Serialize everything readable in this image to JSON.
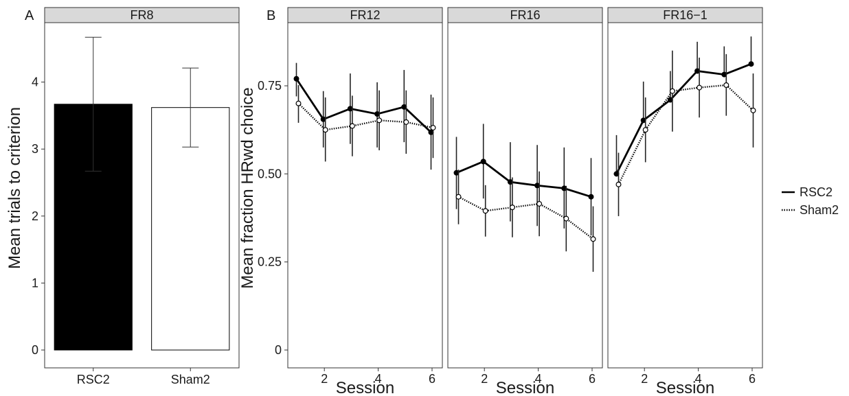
{
  "chart_data": [
    {
      "type": "bar",
      "panel_letter": "A",
      "facet": "FR8",
      "categories": [
        "RSC2",
        "Sham2"
      ],
      "values": [
        3.67,
        3.62
      ],
      "error_low": [
        2.67,
        3.03
      ],
      "error_high": [
        4.67,
        4.21
      ],
      "bar_fill": [
        "#000000",
        "#ffffff"
      ],
      "ylabel": "Mean trials to criterion",
      "ylim": [
        0,
        5
      ],
      "yticks": [
        "0",
        "1",
        "2",
        "3",
        "4"
      ],
      "grid": false
    },
    {
      "type": "line",
      "panel_letter": "B",
      "facets": [
        "FR12",
        "FR16",
        "FR16−1"
      ],
      "xlabel": "Session",
      "ylabel": "Mean fraction HRwd choice",
      "ylim": [
        0,
        0.9
      ],
      "xticks": [
        "2",
        "4",
        "6"
      ],
      "yticks": [
        "0",
        "0.25",
        "0.50",
        "0.75"
      ],
      "x": [
        1,
        2,
        3,
        4,
        5,
        6
      ],
      "grid": false,
      "legend_position": "right",
      "series": [
        {
          "name": "RSC2",
          "line_style": "solid",
          "marker": "filled",
          "values": {
            "FR12": [
              0.77,
              0.655,
              0.685,
              0.67,
              0.69,
              0.618
            ],
            "FR16": [
              0.503,
              0.535,
              0.477,
              0.467,
              0.459,
              0.435
            ],
            "FR16−1": [
              0.5,
              0.652,
              0.71,
              0.792,
              0.782,
              0.812
            ]
          },
          "error_low": {
            "FR12": [
              0.72,
              0.575,
              0.585,
              0.575,
              0.59,
              0.512
            ],
            "FR16": [
              0.4,
              0.43,
              0.365,
              0.352,
              0.345,
              0.325
            ]
          },
          "error_high": {
            "FR12": [
              0.815,
              0.735,
              0.785,
              0.76,
              0.795,
              0.725
            ],
            "FR16": [
              0.605,
              0.642,
              0.59,
              0.582,
              0.575,
              0.545
            ],
            "FR16−1": [
              0.61,
              0.762,
              0.792,
              0.875,
              0.862,
              0.89
            ]
          }
        },
        {
          "name": "Sham2",
          "line_style": "dotted",
          "marker": "open",
          "values": {
            "FR12": [
              0.7,
              0.625,
              0.636,
              0.652,
              0.647,
              0.631
            ],
            "FR16": [
              0.435,
              0.395,
              0.405,
              0.415,
              0.373,
              0.315
            ],
            "FR16−1": [
              0.47,
              0.625,
              0.735,
              0.745,
              0.752,
              0.68
            ]
          },
          "error_low": {
            "FR12": [
              0.645,
              0.535,
              0.55,
              0.567,
              0.557,
              0.545
            ],
            "FR16": [
              0.357,
              0.322,
              0.32,
              0.323,
              0.28,
              0.222
            ],
            "FR16−1": [
              0.38,
              0.533,
              0.62,
              0.66,
              0.665,
              0.575
            ]
          },
          "error_high": {
            "FR12": [
              0.752,
              0.717,
              0.722,
              0.737,
              0.737,
              0.717
            ],
            "FR16": [
              0.512,
              0.468,
              0.49,
              0.507,
              0.466,
              0.408
            ],
            "FR16−1": [
              0.56,
              0.717,
              0.85,
              0.83,
              0.84,
              0.785
            ]
          }
        }
      ]
    }
  ]
}
